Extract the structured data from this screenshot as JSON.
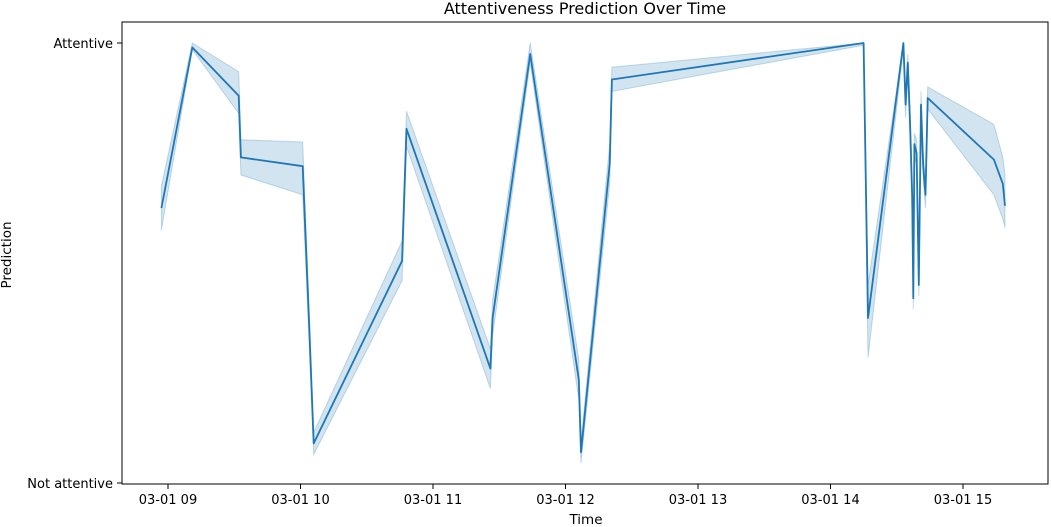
{
  "chart_data": {
    "type": "line",
    "title": "Attentiveness Prediction Over Time",
    "xlabel": "Time",
    "ylabel": "Prediction",
    "x_ticks": [
      "03-01 09",
      "03-01 10",
      "03-01 11",
      "03-01 12",
      "03-01 13",
      "03-01 14",
      "03-01 15"
    ],
    "y_ticks": [
      "Not attentive",
      "Attentive"
    ],
    "y_range": [
      0,
      1
    ],
    "grid": false,
    "series": [
      {
        "color": "#1f77b4",
        "band_color": "#1f77b4",
        "points": [
          {
            "t": "03-01 08:57",
            "y": 0.625,
            "lo": 0.575,
            "hi": 0.675
          },
          {
            "t": "03-01 09:11",
            "y": 0.99,
            "lo": 0.985,
            "hi": 1.0
          },
          {
            "t": "03-01 09:32",
            "y": 0.88,
            "lo": 0.84,
            "hi": 0.935
          },
          {
            "t": "03-01 09:33",
            "y": 0.74,
            "lo": 0.7,
            "hi": 0.78
          },
          {
            "t": "03-01 10:01",
            "y": 0.72,
            "lo": 0.655,
            "hi": 0.775
          },
          {
            "t": "03-01 10:04",
            "y": 0.35,
            "lo": 0.31,
            "hi": 0.39
          },
          {
            "t": "03-01 10:06",
            "y": 0.09,
            "lo": 0.065,
            "hi": 0.115
          },
          {
            "t": "03-01 10:46",
            "y": 0.505,
            "lo": 0.46,
            "hi": 0.55
          },
          {
            "t": "03-01 10:48",
            "y": 0.805,
            "lo": 0.765,
            "hi": 0.845
          },
          {
            "t": "03-01 11:26",
            "y": 0.26,
            "lo": 0.215,
            "hi": 0.305
          },
          {
            "t": "03-01 11:27",
            "y": 0.375,
            "lo": 0.335,
            "hi": 0.415
          },
          {
            "t": "03-01 11:44",
            "y": 0.975,
            "lo": 0.955,
            "hi": 1.0
          },
          {
            "t": "03-01 12:06",
            "y": 0.235,
            "lo": 0.19,
            "hi": 0.28
          },
          {
            "t": "03-01 12:07",
            "y": 0.07,
            "lo": 0.045,
            "hi": 0.095
          },
          {
            "t": "03-01 12:20",
            "y": 0.725,
            "lo": 0.68,
            "hi": 0.77
          },
          {
            "t": "03-01 12:21",
            "y": 0.917,
            "lo": 0.89,
            "hi": 0.945
          },
          {
            "t": "03-01 14:15",
            "y": 1.0,
            "lo": 0.995,
            "hi": 1.0
          },
          {
            "t": "03-01 14:17",
            "y": 0.375,
            "lo": 0.285,
            "hi": 0.45
          },
          {
            "t": "03-01 14:33",
            "y": 1.0,
            "lo": 0.985,
            "hi": 1.0
          },
          {
            "t": "03-01 14:34",
            "y": 0.86,
            "lo": 0.83,
            "hi": 0.89
          },
          {
            "t": "03-01 14:35",
            "y": 0.955,
            "lo": 0.935,
            "hi": 0.975
          },
          {
            "t": "03-01 14:36",
            "y": 0.82,
            "lo": 0.79,
            "hi": 0.85
          },
          {
            "t": "03-01 14:37",
            "y": 0.65,
            "lo": 0.61,
            "hi": 0.69
          },
          {
            "t": "03-01 14:37:30",
            "y": 0.42,
            "lo": 0.395,
            "hi": 0.445
          },
          {
            "t": "03-01 14:38",
            "y": 0.77,
            "lo": 0.745,
            "hi": 0.795
          },
          {
            "t": "03-01 14:39",
            "y": 0.75,
            "lo": 0.72,
            "hi": 0.78
          },
          {
            "t": "03-01 14:40",
            "y": 0.45,
            "lo": 0.425,
            "hi": 0.475
          },
          {
            "t": "03-01 14:41",
            "y": 0.86,
            "lo": 0.83,
            "hi": 0.89
          },
          {
            "t": "03-01 14:42",
            "y": 0.72,
            "lo": 0.69,
            "hi": 0.75
          },
          {
            "t": "03-01 14:43",
            "y": 0.655,
            "lo": 0.625,
            "hi": 0.685
          },
          {
            "t": "03-01 14:44",
            "y": 0.875,
            "lo": 0.85,
            "hi": 0.9
          },
          {
            "t": "03-01 15:14",
            "y": 0.735,
            "lo": 0.655,
            "hi": 0.815
          },
          {
            "t": "03-01 15:18",
            "y": 0.68,
            "lo": 0.6,
            "hi": 0.74
          },
          {
            "t": "03-01 15:19",
            "y": 0.63,
            "lo": 0.58,
            "hi": 0.7
          }
        ]
      }
    ]
  }
}
